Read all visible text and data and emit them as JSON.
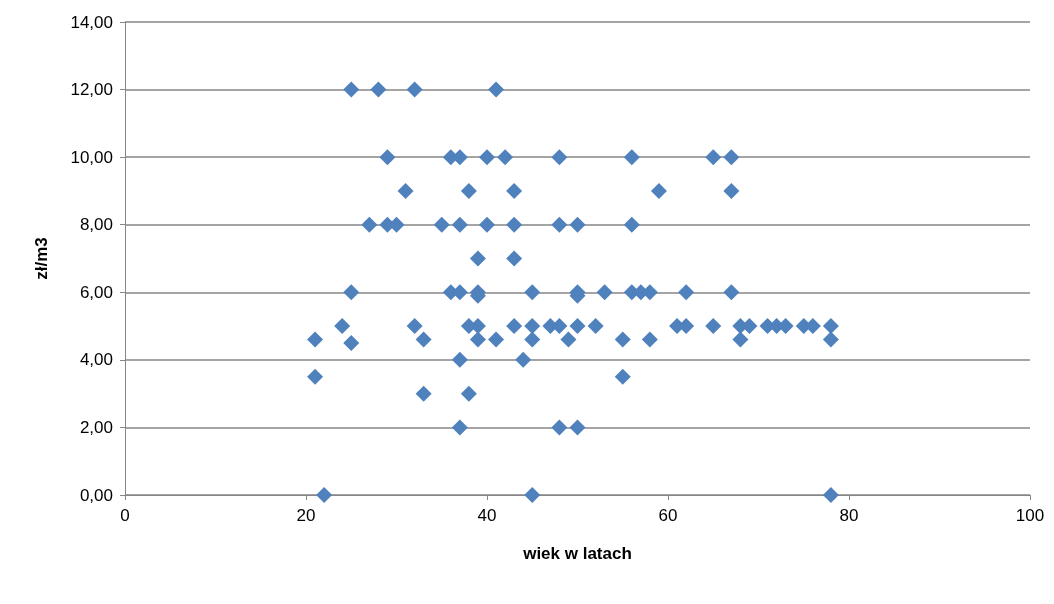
{
  "chart_data": {
    "type": "scatter",
    "xlabel": "wiek w latach",
    "ylabel": "zł/m3",
    "x": [
      25,
      28,
      32,
      41,
      29,
      36,
      37,
      40,
      42,
      48,
      56,
      65,
      67,
      31,
      38,
      43,
      59,
      67,
      27,
      29,
      30,
      35,
      37,
      40,
      43,
      48,
      50,
      56,
      39,
      43,
      25,
      36,
      37,
      39,
      45,
      50,
      53,
      56,
      57,
      58,
      62,
      67,
      39,
      50,
      24,
      32,
      38,
      39,
      43,
      45,
      47,
      48,
      50,
      52,
      61,
      62,
      65,
      68,
      69,
      71,
      72,
      73,
      75,
      76,
      78,
      21,
      33,
      39,
      41,
      45,
      49,
      55,
      58,
      68,
      78,
      25,
      37,
      44,
      21,
      55,
      33,
      38,
      37,
      48,
      50,
      22,
      45,
      78
    ],
    "values": [
      12,
      12,
      12,
      12,
      10,
      10,
      10,
      10,
      10,
      10,
      10,
      10,
      10,
      9,
      9,
      9,
      9,
      9,
      8,
      8,
      8,
      8,
      8,
      8,
      8,
      8,
      8,
      8,
      7,
      7,
      6,
      6,
      6,
      6,
      6,
      6,
      6,
      6,
      6,
      6,
      6,
      6,
      5.9,
      5.9,
      5,
      5,
      5,
      5,
      5,
      5,
      5,
      5,
      5,
      5,
      5,
      5,
      5,
      5,
      5,
      5,
      5,
      5,
      5,
      5,
      5,
      4.6,
      4.6,
      4.6,
      4.6,
      4.6,
      4.6,
      4.6,
      4.6,
      4.6,
      4.6,
      4.5,
      4,
      4,
      3.5,
      3.5,
      3,
      3,
      2,
      2,
      2,
      0,
      0,
      0
    ],
    "color": "#4f81bd",
    "marker": "diamond",
    "grid": "y",
    "xlim": [
      0,
      100
    ],
    "xticks": [
      0,
      20,
      40,
      60,
      80,
      100
    ],
    "ylim": [
      0,
      14
    ],
    "yticks": [
      {
        "value": 0,
        "label": "0,00"
      },
      {
        "value": 2,
        "label": "2,00"
      },
      {
        "value": 4,
        "label": "4,00"
      },
      {
        "value": 6,
        "label": "6,00"
      },
      {
        "value": 8,
        "label": "8,00"
      },
      {
        "value": 10,
        "label": "10,00"
      },
      {
        "value": 12,
        "label": "12,00"
      },
      {
        "value": 14,
        "label": "14,00"
      }
    ]
  }
}
